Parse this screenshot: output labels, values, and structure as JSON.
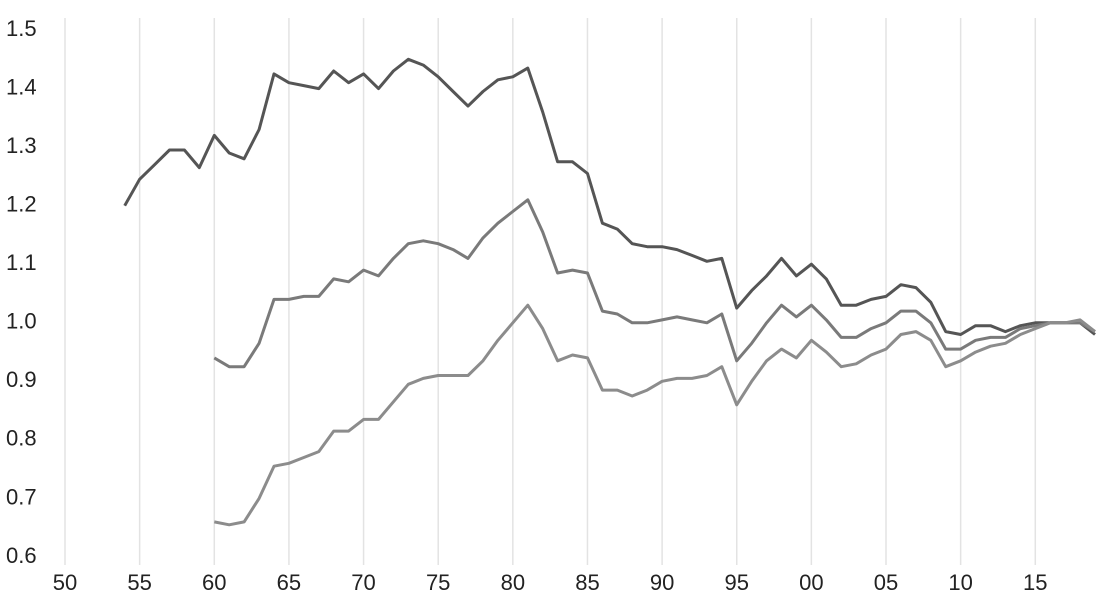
{
  "chart_data": {
    "type": "line",
    "x": [
      1954,
      1955,
      1956,
      1957,
      1958,
      1959,
      1960,
      1961,
      1962,
      1963,
      1964,
      1965,
      1966,
      1967,
      1968,
      1969,
      1970,
      1971,
      1972,
      1973,
      1974,
      1975,
      1976,
      1977,
      1978,
      1979,
      1980,
      1981,
      1982,
      1983,
      1984,
      1985,
      1986,
      1987,
      1988,
      1989,
      1990,
      1991,
      1992,
      1993,
      1994,
      1995,
      1996,
      1997,
      1998,
      1999,
      2000,
      2001,
      2002,
      2003,
      2004,
      2005,
      2006,
      2007,
      2008,
      2009,
      2010,
      2011,
      2012,
      2013,
      2014,
      2015,
      2016,
      2017,
      2018,
      2019
    ],
    "series": [
      {
        "color": "#555555",
        "values": [
          1.2,
          1.245,
          1.27,
          1.295,
          1.295,
          1.265,
          1.32,
          1.29,
          1.28,
          1.33,
          1.425,
          1.41,
          1.405,
          1.4,
          1.43,
          1.41,
          1.425,
          1.4,
          1.43,
          1.45,
          1.44,
          1.42,
          1.395,
          1.37,
          1.395,
          1.415,
          1.42,
          1.435,
          1.36,
          1.275,
          1.275,
          1.255,
          1.17,
          1.16,
          1.135,
          1.13,
          1.13,
          1.125,
          1.115,
          1.105,
          1.11,
          1.025,
          1.055,
          1.08,
          1.11,
          1.08,
          1.1,
          1.075,
          1.03,
          1.03,
          1.04,
          1.045,
          1.065,
          1.06,
          1.035,
          0.985,
          0.98,
          0.995,
          0.995,
          0.985,
          0.995,
          1.0,
          1.0,
          1.0,
          1.0,
          0.98
        ]
      },
      {
        "color": "#7a7a7a",
        "values": [
          null,
          null,
          null,
          null,
          null,
          null,
          0.94,
          0.925,
          0.925,
          0.965,
          1.04,
          1.04,
          1.045,
          1.045,
          1.075,
          1.07,
          1.09,
          1.08,
          1.11,
          1.135,
          1.14,
          1.135,
          1.125,
          1.11,
          1.145,
          1.17,
          1.19,
          1.21,
          1.155,
          1.085,
          1.09,
          1.085,
          1.02,
          1.015,
          1.0,
          1.0,
          1.005,
          1.01,
          1.005,
          1.0,
          1.015,
          0.935,
          0.965,
          1.0,
          1.03,
          1.01,
          1.03,
          1.005,
          0.975,
          0.975,
          0.99,
          1.0,
          1.02,
          1.02,
          1.0,
          0.955,
          0.955,
          0.97,
          0.975,
          0.975,
          0.99,
          0.995,
          1.0,
          1.0,
          1.0,
          0.985
        ]
      },
      {
        "color": "#8c8c8c",
        "values": [
          null,
          null,
          null,
          null,
          null,
          null,
          0.66,
          0.655,
          0.66,
          0.7,
          0.755,
          0.76,
          0.77,
          0.78,
          0.815,
          0.815,
          0.835,
          0.835,
          0.865,
          0.895,
          0.905,
          0.91,
          0.91,
          0.91,
          0.935,
          0.97,
          1.0,
          1.03,
          0.99,
          0.935,
          0.945,
          0.94,
          0.885,
          0.885,
          0.875,
          0.885,
          0.9,
          0.905,
          0.905,
          0.91,
          0.925,
          0.86,
          0.9,
          0.935,
          0.955,
          0.94,
          0.97,
          0.95,
          0.925,
          0.93,
          0.945,
          0.955,
          0.98,
          0.985,
          0.97,
          0.925,
          0.935,
          0.95,
          0.96,
          0.965,
          0.98,
          0.99,
          1.0,
          1.0,
          1.005,
          0.985
        ]
      }
    ],
    "xlim": [
      1950,
      2019
    ],
    "xticks": [
      {
        "value": 1950,
        "label": "50"
      },
      {
        "value": 1955,
        "label": "55"
      },
      {
        "value": 1960,
        "label": "60"
      },
      {
        "value": 1965,
        "label": "65"
      },
      {
        "value": 1970,
        "label": "70"
      },
      {
        "value": 1975,
        "label": "75"
      },
      {
        "value": 1980,
        "label": "80"
      },
      {
        "value": 1985,
        "label": "85"
      },
      {
        "value": 1990,
        "label": "90"
      },
      {
        "value": 1995,
        "label": "95"
      },
      {
        "value": 2000,
        "label": "00"
      },
      {
        "value": 2005,
        "label": "05"
      },
      {
        "value": 2010,
        "label": "10"
      },
      {
        "value": 2015,
        "label": "15"
      }
    ],
    "ylim": [
      0.6,
      1.5
    ],
    "yticks": [
      0.6,
      0.7,
      0.8,
      0.9,
      {
        "value": 1.0,
        "label": "1.0"
      },
      1.1,
      1.2,
      1.3,
      1.4,
      1.5
    ],
    "grid": "x"
  }
}
